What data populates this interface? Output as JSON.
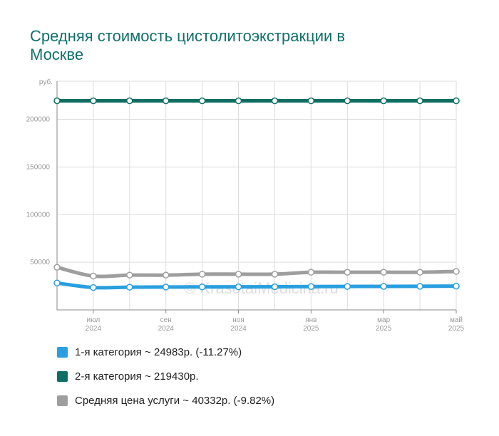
{
  "title": "Средняя стоимость цистолитоэкстракции в Москве",
  "watermark": "© KrasotaiMedicina.ru",
  "chart_data": {
    "type": "line",
    "unit_label": "руб.",
    "ylim": [
      0,
      240000
    ],
    "y_ticks": [
      {
        "value": 50000,
        "label": "50000"
      },
      {
        "value": 100000,
        "label": "100000"
      },
      {
        "value": 150000,
        "label": "150000"
      },
      {
        "value": 200000,
        "label": "200000"
      }
    ],
    "x_points": 12,
    "x_ticks": [
      {
        "index": 1,
        "month": "июл",
        "year": "2024"
      },
      {
        "index": 3,
        "month": "сен",
        "year": "2024"
      },
      {
        "index": 5,
        "month": "ноя",
        "year": "2024"
      },
      {
        "index": 7,
        "month": "янв",
        "year": "2025"
      },
      {
        "index": 9,
        "month": "мар",
        "year": "2025"
      },
      {
        "index": 11,
        "month": "май",
        "year": "2025"
      }
    ],
    "series": [
      {
        "name": "1-я категория",
        "color": "#2a9fe0",
        "values": [
          28200,
          23500,
          23800,
          24000,
          24100,
          24200,
          24300,
          24500,
          24600,
          24700,
          24800,
          24983
        ]
      },
      {
        "name": "2-я категория",
        "color": "#0e6e63",
        "values": [
          219430,
          219430,
          219430,
          219430,
          219430,
          219430,
          219430,
          219430,
          219430,
          219430,
          219430,
          219430
        ]
      },
      {
        "name": "Средняя цена услуги",
        "color": "#9e9e9e",
        "values": [
          44700,
          35500,
          36500,
          36500,
          37500,
          37500,
          37500,
          39500,
          39500,
          39500,
          39500,
          40332
        ]
      }
    ]
  },
  "legend": [
    {
      "label": "1-я категория ~ 24983р. (-11.27%)",
      "color": "#2a9fe0"
    },
    {
      "label": "2-я категория ~ 219430р.",
      "color": "#0e6e63"
    },
    {
      "label": "Средняя цена услуги ~ 40332р. (-9.82%)",
      "color": "#9e9e9e"
    }
  ]
}
